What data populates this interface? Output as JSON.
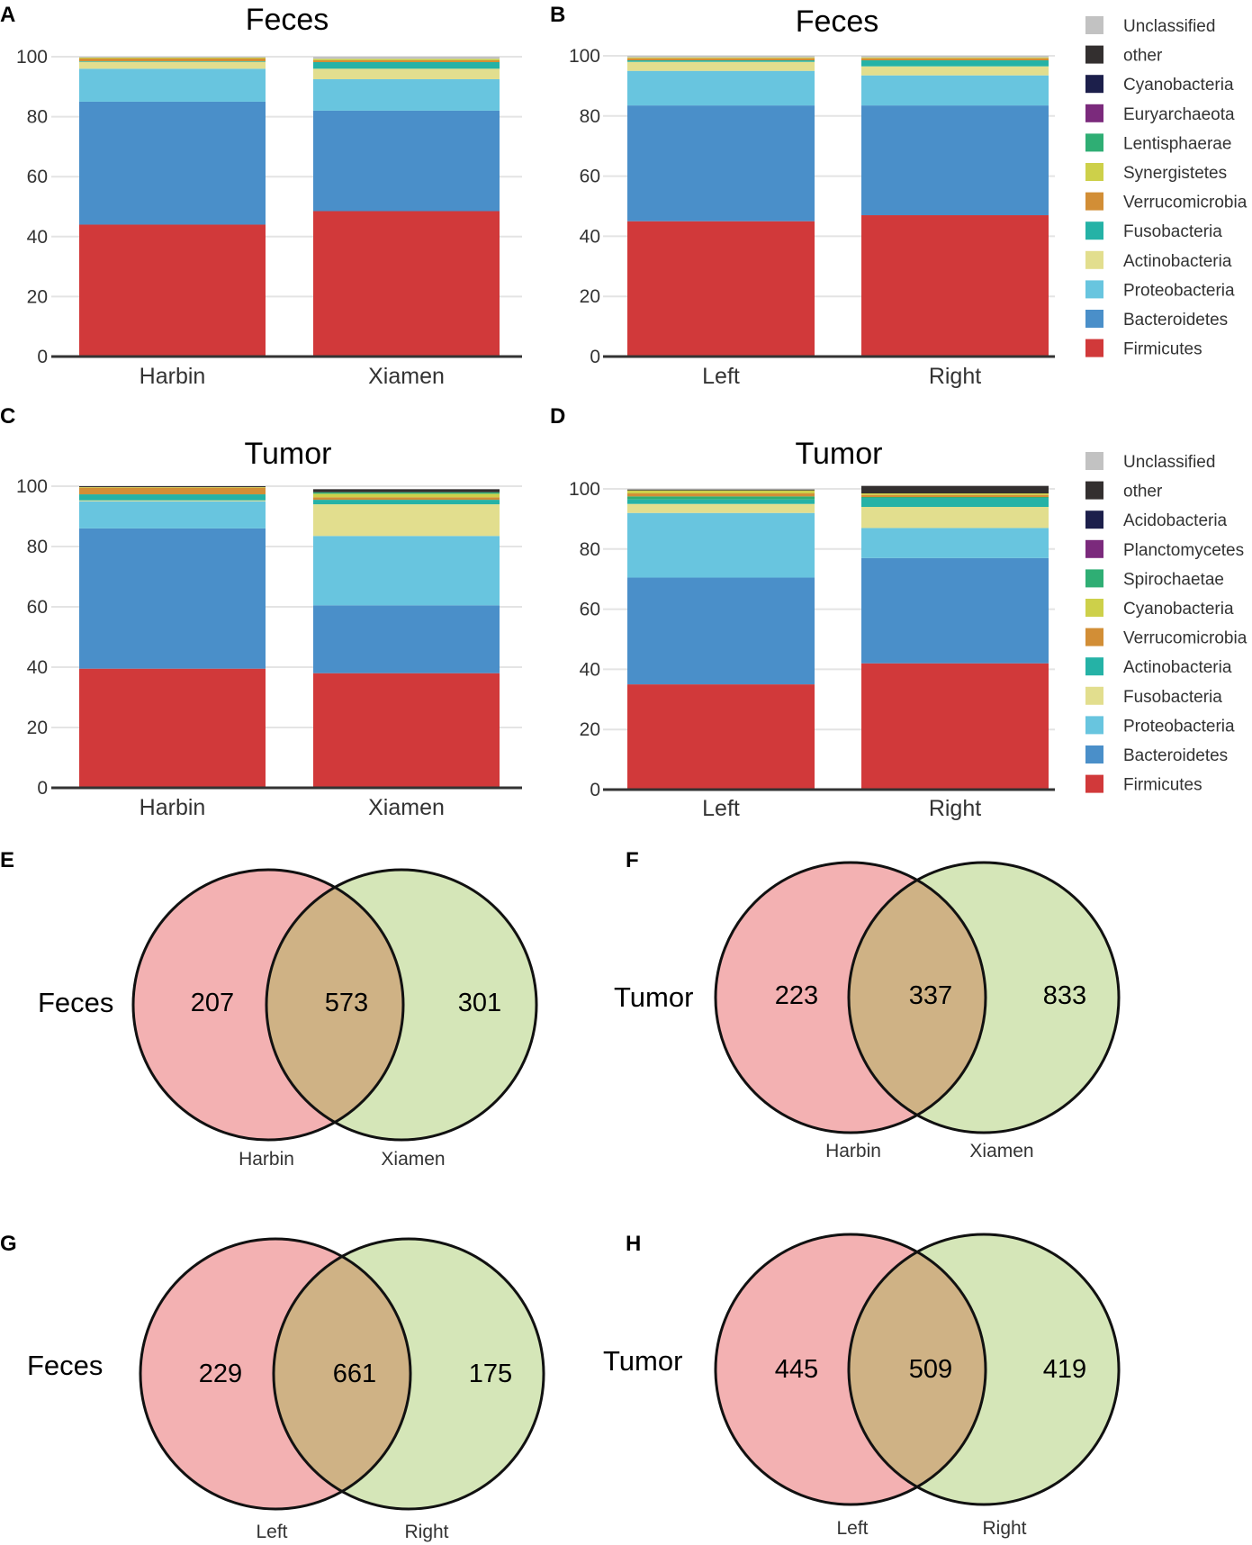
{
  "colors": {
    "Unclassified": "#c2c2c2",
    "other": "#332f2f",
    "Cyanobacteria": "#cdd04a",
    "Cyanobacteria_feces": "#1c1f4b",
    "Euryarchaeota": "#7b2a7c",
    "Lentisphaerae": "#2fae74",
    "Synergistetes": "#cdd04a",
    "Verrucomicrobia": "#d28e36",
    "Fusobacteria": "#25b2a6",
    "Fusobacteria_tumor": "#e2de8e",
    "Actinobacteria": "#e2de8e",
    "Actinobacteria_tumor": "#25b2a6",
    "Proteobacteria": "#68c5df",
    "Bacteroidetes": "#4a8fc9",
    "Firmicutes": "#d1393a",
    "Acidobacteria": "#1c1f4b",
    "Planctomycetes": "#7b2a7c",
    "Spirochaetae": "#2fae74",
    "venn_left": "#f3b1b2",
    "venn_right": "#d5e6b8",
    "venn_overlap": "#cfb285"
  },
  "legends": {
    "feces": [
      {
        "label": "Unclassified",
        "color": "#c2c2c2"
      },
      {
        "label": "other",
        "color": "#332f2f"
      },
      {
        "label": "Cyanobacteria",
        "color": "#1c1f4b"
      },
      {
        "label": "Euryarchaeota",
        "color": "#7b2a7c"
      },
      {
        "label": "Lentisphaerae",
        "color": "#2fae74"
      },
      {
        "label": "Synergistetes",
        "color": "#cdd04a"
      },
      {
        "label": "Verrucomicrobia",
        "color": "#d28e36"
      },
      {
        "label": "Fusobacteria",
        "color": "#25b2a6"
      },
      {
        "label": "Actinobacteria",
        "color": "#e2de8e"
      },
      {
        "label": "Proteobacteria",
        "color": "#68c5df"
      },
      {
        "label": "Bacteroidetes",
        "color": "#4a8fc9"
      },
      {
        "label": "Firmicutes",
        "color": "#d1393a"
      }
    ],
    "tumor": [
      {
        "label": "Unclassified",
        "color": "#c2c2c2"
      },
      {
        "label": "other",
        "color": "#332f2f"
      },
      {
        "label": "Acidobacteria",
        "color": "#1c1f4b"
      },
      {
        "label": "Planctomycetes",
        "color": "#7b2a7c"
      },
      {
        "label": "Spirochaetae",
        "color": "#2fae74"
      },
      {
        "label": "Cyanobacteria",
        "color": "#cdd04a"
      },
      {
        "label": "Verrucomicrobia",
        "color": "#d28e36"
      },
      {
        "label": "Actinobacteria",
        "color": "#25b2a6"
      },
      {
        "label": "Fusobacteria",
        "color": "#e2de8e"
      },
      {
        "label": "Proteobacteria",
        "color": "#68c5df"
      },
      {
        "label": "Bacteroidetes",
        "color": "#4a8fc9"
      },
      {
        "label": "Firmicutes",
        "color": "#d1393a"
      }
    ]
  },
  "chart_data": [
    {
      "panel": "A",
      "type": "bar",
      "stacked": true,
      "title": "Feces",
      "categories": [
        "Harbin",
        "Xiamen"
      ],
      "ylim": [
        0,
        100
      ],
      "yticks": [
        "0",
        "20",
        "40",
        "60",
        "80",
        "100"
      ],
      "series": [
        {
          "name": "Firmicutes",
          "color": "#d1393a",
          "values": [
            44.0,
            48.5
          ]
        },
        {
          "name": "Bacteroidetes",
          "color": "#4a8fc9",
          "values": [
            41.0,
            33.5
          ]
        },
        {
          "name": "Proteobacteria",
          "color": "#68c5df",
          "values": [
            11.0,
            10.5
          ]
        },
        {
          "name": "Actinobacteria",
          "color": "#e2de8e",
          "values": [
            2.3,
            3.5
          ]
        },
        {
          "name": "Fusobacteria",
          "color": "#25b2a6",
          "values": [
            0.2,
            2.2
          ]
        },
        {
          "name": "Verrucomicrobia",
          "color": "#d28e36",
          "values": [
            0.9,
            0.6
          ]
        },
        {
          "name": "Synergistetes",
          "color": "#cdd04a",
          "values": [
            0.3,
            0.5
          ]
        },
        {
          "name": "Unclassified",
          "color": "#c2c2c2",
          "values": [
            0.3,
            0.7
          ]
        }
      ]
    },
    {
      "panel": "B",
      "type": "bar",
      "stacked": true,
      "title": "Feces",
      "categories": [
        "Left",
        "Right"
      ],
      "ylim": [
        0,
        100
      ],
      "yticks": [
        "0",
        "20",
        "40",
        "60",
        "80",
        "100"
      ],
      "series": [
        {
          "name": "Firmicutes",
          "color": "#d1393a",
          "values": [
            45.0,
            47.0
          ]
        },
        {
          "name": "Bacteroidetes",
          "color": "#4a8fc9",
          "values": [
            38.5,
            36.5
          ]
        },
        {
          "name": "Proteobacteria",
          "color": "#68c5df",
          "values": [
            11.5,
            10.0
          ]
        },
        {
          "name": "Actinobacteria",
          "color": "#e2de8e",
          "values": [
            3.0,
            3.0
          ]
        },
        {
          "name": "Fusobacteria",
          "color": "#25b2a6",
          "values": [
            0.5,
            2.0
          ]
        },
        {
          "name": "Verrucomicrobia",
          "color": "#d28e36",
          "values": [
            0.7,
            0.7
          ]
        },
        {
          "name": "Synergistetes",
          "color": "#cdd04a",
          "values": [
            0.3,
            0.3
          ]
        },
        {
          "name": "Unclassified",
          "color": "#c2c2c2",
          "values": [
            0.5,
            0.5
          ]
        }
      ]
    },
    {
      "panel": "C",
      "type": "bar",
      "stacked": true,
      "title": "Tumor",
      "categories": [
        "Harbin",
        "Xiamen"
      ],
      "ylim": [
        0,
        100
      ],
      "yticks": [
        "0",
        "20",
        "40",
        "60",
        "80",
        "100"
      ],
      "series": [
        {
          "name": "Firmicutes",
          "color": "#d1393a",
          "values": [
            39.5,
            38.0
          ]
        },
        {
          "name": "Bacteroidetes",
          "color": "#4a8fc9",
          "values": [
            46.5,
            22.5
          ]
        },
        {
          "name": "Proteobacteria",
          "color": "#68c5df",
          "values": [
            9.0,
            23.0
          ]
        },
        {
          "name": "Fusobacteria",
          "color": "#e2de8e",
          "values": [
            0.3,
            10.5
          ]
        },
        {
          "name": "Actinobacteria",
          "color": "#25b2a6",
          "values": [
            2.0,
            1.5
          ]
        },
        {
          "name": "Verrucomicrobia",
          "color": "#d28e36",
          "values": [
            2.2,
            0.8
          ]
        },
        {
          "name": "Cyanobacteria",
          "color": "#cdd04a",
          "values": [
            0.2,
            1.2
          ]
        },
        {
          "name": "Spirochaetae",
          "color": "#2fae74",
          "values": [
            0.0,
            0.5
          ]
        },
        {
          "name": "other",
          "color": "#332f2f",
          "values": [
            0.3,
            1.0
          ]
        }
      ]
    },
    {
      "panel": "D",
      "type": "bar",
      "stacked": true,
      "title": "Tumor",
      "categories": [
        "Left",
        "Right"
      ],
      "ylim": [
        0,
        100
      ],
      "yticks": [
        "0",
        "20",
        "40",
        "60",
        "80",
        "100"
      ],
      "series": [
        {
          "name": "Firmicutes",
          "color": "#d1393a",
          "values": [
            35.0,
            42.0
          ]
        },
        {
          "name": "Bacteroidetes",
          "color": "#4a8fc9",
          "values": [
            35.5,
            35.0
          ]
        },
        {
          "name": "Proteobacteria",
          "color": "#68c5df",
          "values": [
            21.5,
            10.0
          ]
        },
        {
          "name": "Fusobacteria",
          "color": "#e2de8e",
          "values": [
            3.0,
            7.0
          ]
        },
        {
          "name": "Actinobacteria",
          "color": "#25b2a6",
          "values": [
            1.5,
            3.0
          ]
        },
        {
          "name": "Spirochaetae",
          "color": "#2fae74",
          "values": [
            1.0,
            0.3
          ]
        },
        {
          "name": "Verrucomicrobia",
          "color": "#d28e36",
          "values": [
            1.0,
            0.7
          ]
        },
        {
          "name": "Cyanobacteria",
          "color": "#cdd04a",
          "values": [
            1.0,
            0.5
          ]
        },
        {
          "name": "other",
          "color": "#332f2f",
          "values": [
            0.3,
            2.5
          ]
        }
      ]
    }
  ],
  "venns": [
    {
      "panel": "E",
      "side_label": "Feces",
      "left_label": "Harbin",
      "right_label": "Xiamen",
      "left_only": "207",
      "shared": "573",
      "right_only": "301"
    },
    {
      "panel": "F",
      "side_label": "Tumor",
      "left_label": "Harbin",
      "right_label": "Xiamen",
      "left_only": "223",
      "shared": "337",
      "right_only": "833"
    },
    {
      "panel": "G",
      "side_label": "Feces",
      "left_label": "Left",
      "right_label": "Right",
      "left_only": "229",
      "shared": "661",
      "right_only": "175"
    },
    {
      "panel": "H",
      "side_label": "Tumor",
      "left_label": "Left",
      "right_label": "Right",
      "left_only": "445",
      "shared": "509",
      "right_only": "419"
    }
  ]
}
